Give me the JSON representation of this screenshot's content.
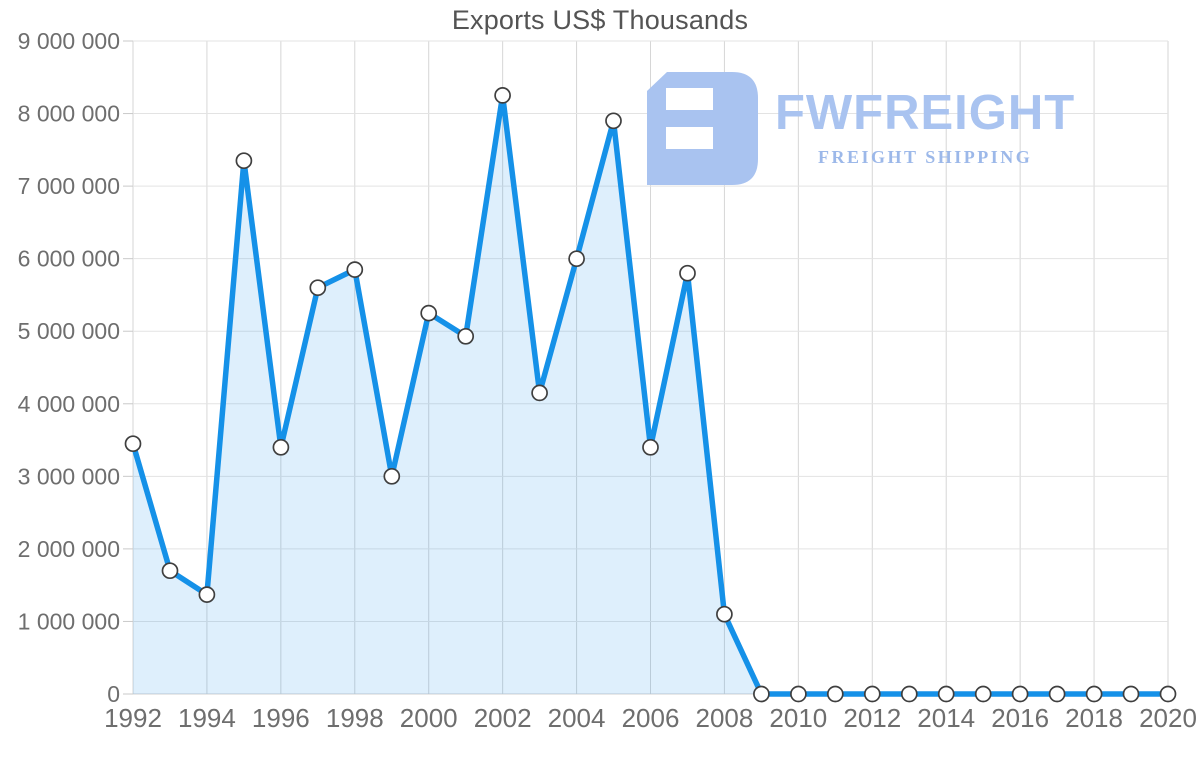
{
  "title": "Exports US$ Thousands",
  "logo": {
    "name": "FWFREIGHT",
    "tagline": "FREIGHT SHIPPING",
    "glyph": "fwfreight-mark",
    "name_color": "#a9c3f0",
    "tagline_color": "#9cb8e9",
    "glyph_color": "#a9c3f0"
  },
  "colors": {
    "line": "#1591e8",
    "area_fill_rgba": "rgba(21,145,232,0.14)",
    "marker_fill": "#ffffff",
    "marker_stroke": "#3f3f3f",
    "grid_horizontal": "#e3e3e3",
    "grid_vertical": "#d6d6d6",
    "axis_tick": "#c9c9c9",
    "baseline": "#d0d0d0",
    "axis_label": "#6e6e6e",
    "title": "#545454",
    "background": "#ffffff"
  },
  "chart_data": {
    "type": "area",
    "title": "Exports US$ Thousands",
    "xlabel": "",
    "ylabel": "",
    "x": [
      1992,
      1993,
      1994,
      1995,
      1996,
      1997,
      1998,
      1999,
      2000,
      2001,
      2002,
      2003,
      2004,
      2005,
      2006,
      2007,
      2008,
      2009,
      2010,
      2011,
      2012,
      2013,
      2014,
      2015,
      2016,
      2017,
      2018,
      2019,
      2020
    ],
    "series": [
      {
        "name": "Exports US$ Thousands",
        "values": [
          3450000,
          1700000,
          1370000,
          7350000,
          3400000,
          5600000,
          5850000,
          3000000,
          5250000,
          4930000,
          8250000,
          4150000,
          6000000,
          7900000,
          3400000,
          5800000,
          1100000,
          0,
          0,
          0,
          0,
          0,
          0,
          0,
          0,
          0,
          0,
          0,
          0
        ]
      }
    ],
    "ylim": [
      0,
      9000000
    ],
    "y_tick_interval": 1000000,
    "y_tick_labels": [
      "0",
      "1 000 000",
      "2 000 000",
      "3 000 000",
      "4 000 000",
      "5 000 000",
      "6 000 000",
      "7 000 000",
      "8 000 000",
      "9 000 000"
    ],
    "x_tick_labels": [
      "1992",
      "1994",
      "1996",
      "1998",
      "2000",
      "2002",
      "2004",
      "2006",
      "2008",
      "2010",
      "2012",
      "2014",
      "2016",
      "2018",
      "2020"
    ],
    "x_tick_years": [
      1992,
      1994,
      1996,
      1998,
      2000,
      2002,
      2004,
      2006,
      2008,
      2010,
      2012,
      2014,
      2016,
      2018,
      2020
    ],
    "grid": true,
    "legend": "none",
    "marker": "circle"
  }
}
